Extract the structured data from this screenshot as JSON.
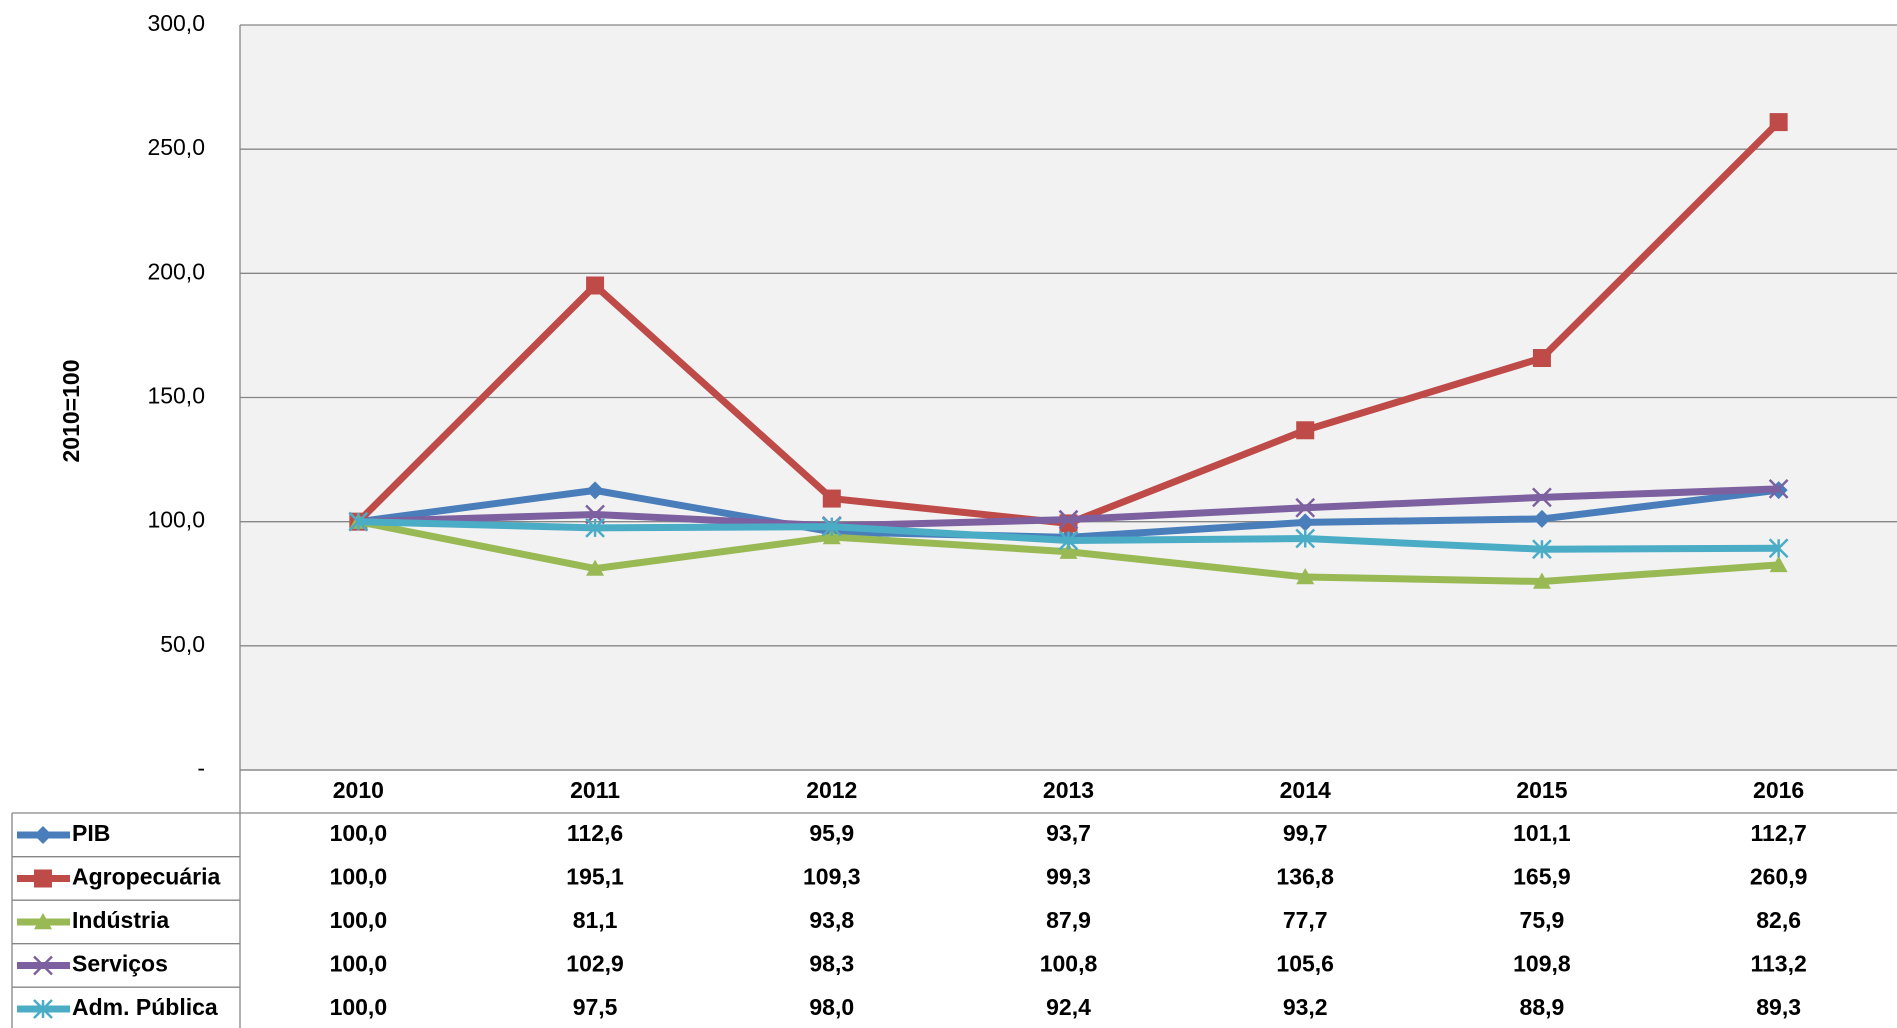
{
  "chart_data": {
    "type": "line",
    "y_label": "2010=100",
    "categories": [
      "2010",
      "2011",
      "2012",
      "2013",
      "2014",
      "2015",
      "2016"
    ],
    "ylim": [
      0,
      300
    ],
    "yticks": [
      {
        "value": 0,
        "label": "-"
      },
      {
        "value": 50,
        "label": "50,0"
      },
      {
        "value": 100,
        "label": "100,0"
      },
      {
        "value": 150,
        "label": "150,0"
      },
      {
        "value": 200,
        "label": "200,0"
      },
      {
        "value": 250,
        "label": "250,0"
      },
      {
        "value": 300,
        "label": "300,0"
      }
    ],
    "grid": true,
    "series": [
      {
        "name": "PIB",
        "color": "#4a7ebb",
        "marker": "diamond",
        "values": [
          100.0,
          112.6,
          95.9,
          93.7,
          99.7,
          101.1,
          112.7
        ],
        "value_labels": [
          "100,0",
          "112,6",
          "95,9",
          "93,7",
          "99,7",
          "101,1",
          "112,7"
        ]
      },
      {
        "name": "Agropecuária",
        "color": "#be4b48",
        "marker": "square",
        "values": [
          100.0,
          195.1,
          109.3,
          99.3,
          136.8,
          165.9,
          260.9
        ],
        "value_labels": [
          "100,0",
          "195,1",
          "109,3",
          "99,3",
          "136,8",
          "165,9",
          "260,9"
        ]
      },
      {
        "name": "Indústria",
        "color": "#98b954",
        "marker": "triangle",
        "values": [
          100.0,
          81.1,
          93.8,
          87.9,
          77.7,
          75.9,
          82.6
        ],
        "value_labels": [
          "100,0",
          "81,1",
          "93,8",
          "87,9",
          "77,7",
          "75,9",
          "82,6"
        ]
      },
      {
        "name": "Serviços",
        "color": "#7d60a0",
        "marker": "x",
        "values": [
          100.0,
          102.9,
          98.3,
          100.8,
          105.6,
          109.8,
          113.2
        ],
        "value_labels": [
          "100,0",
          "102,9",
          "98,3",
          "100,8",
          "105,6",
          "109,8",
          "113,2"
        ]
      },
      {
        "name": "Adm. Pública",
        "color": "#4bacc6",
        "marker": "asterisk",
        "values": [
          100.0,
          97.5,
          98.0,
          92.4,
          93.2,
          88.9,
          89.3
        ],
        "value_labels": [
          "100,0",
          "97,5",
          "98,0",
          "92,4",
          "93,2",
          "88,9",
          "89,3"
        ]
      }
    ]
  }
}
